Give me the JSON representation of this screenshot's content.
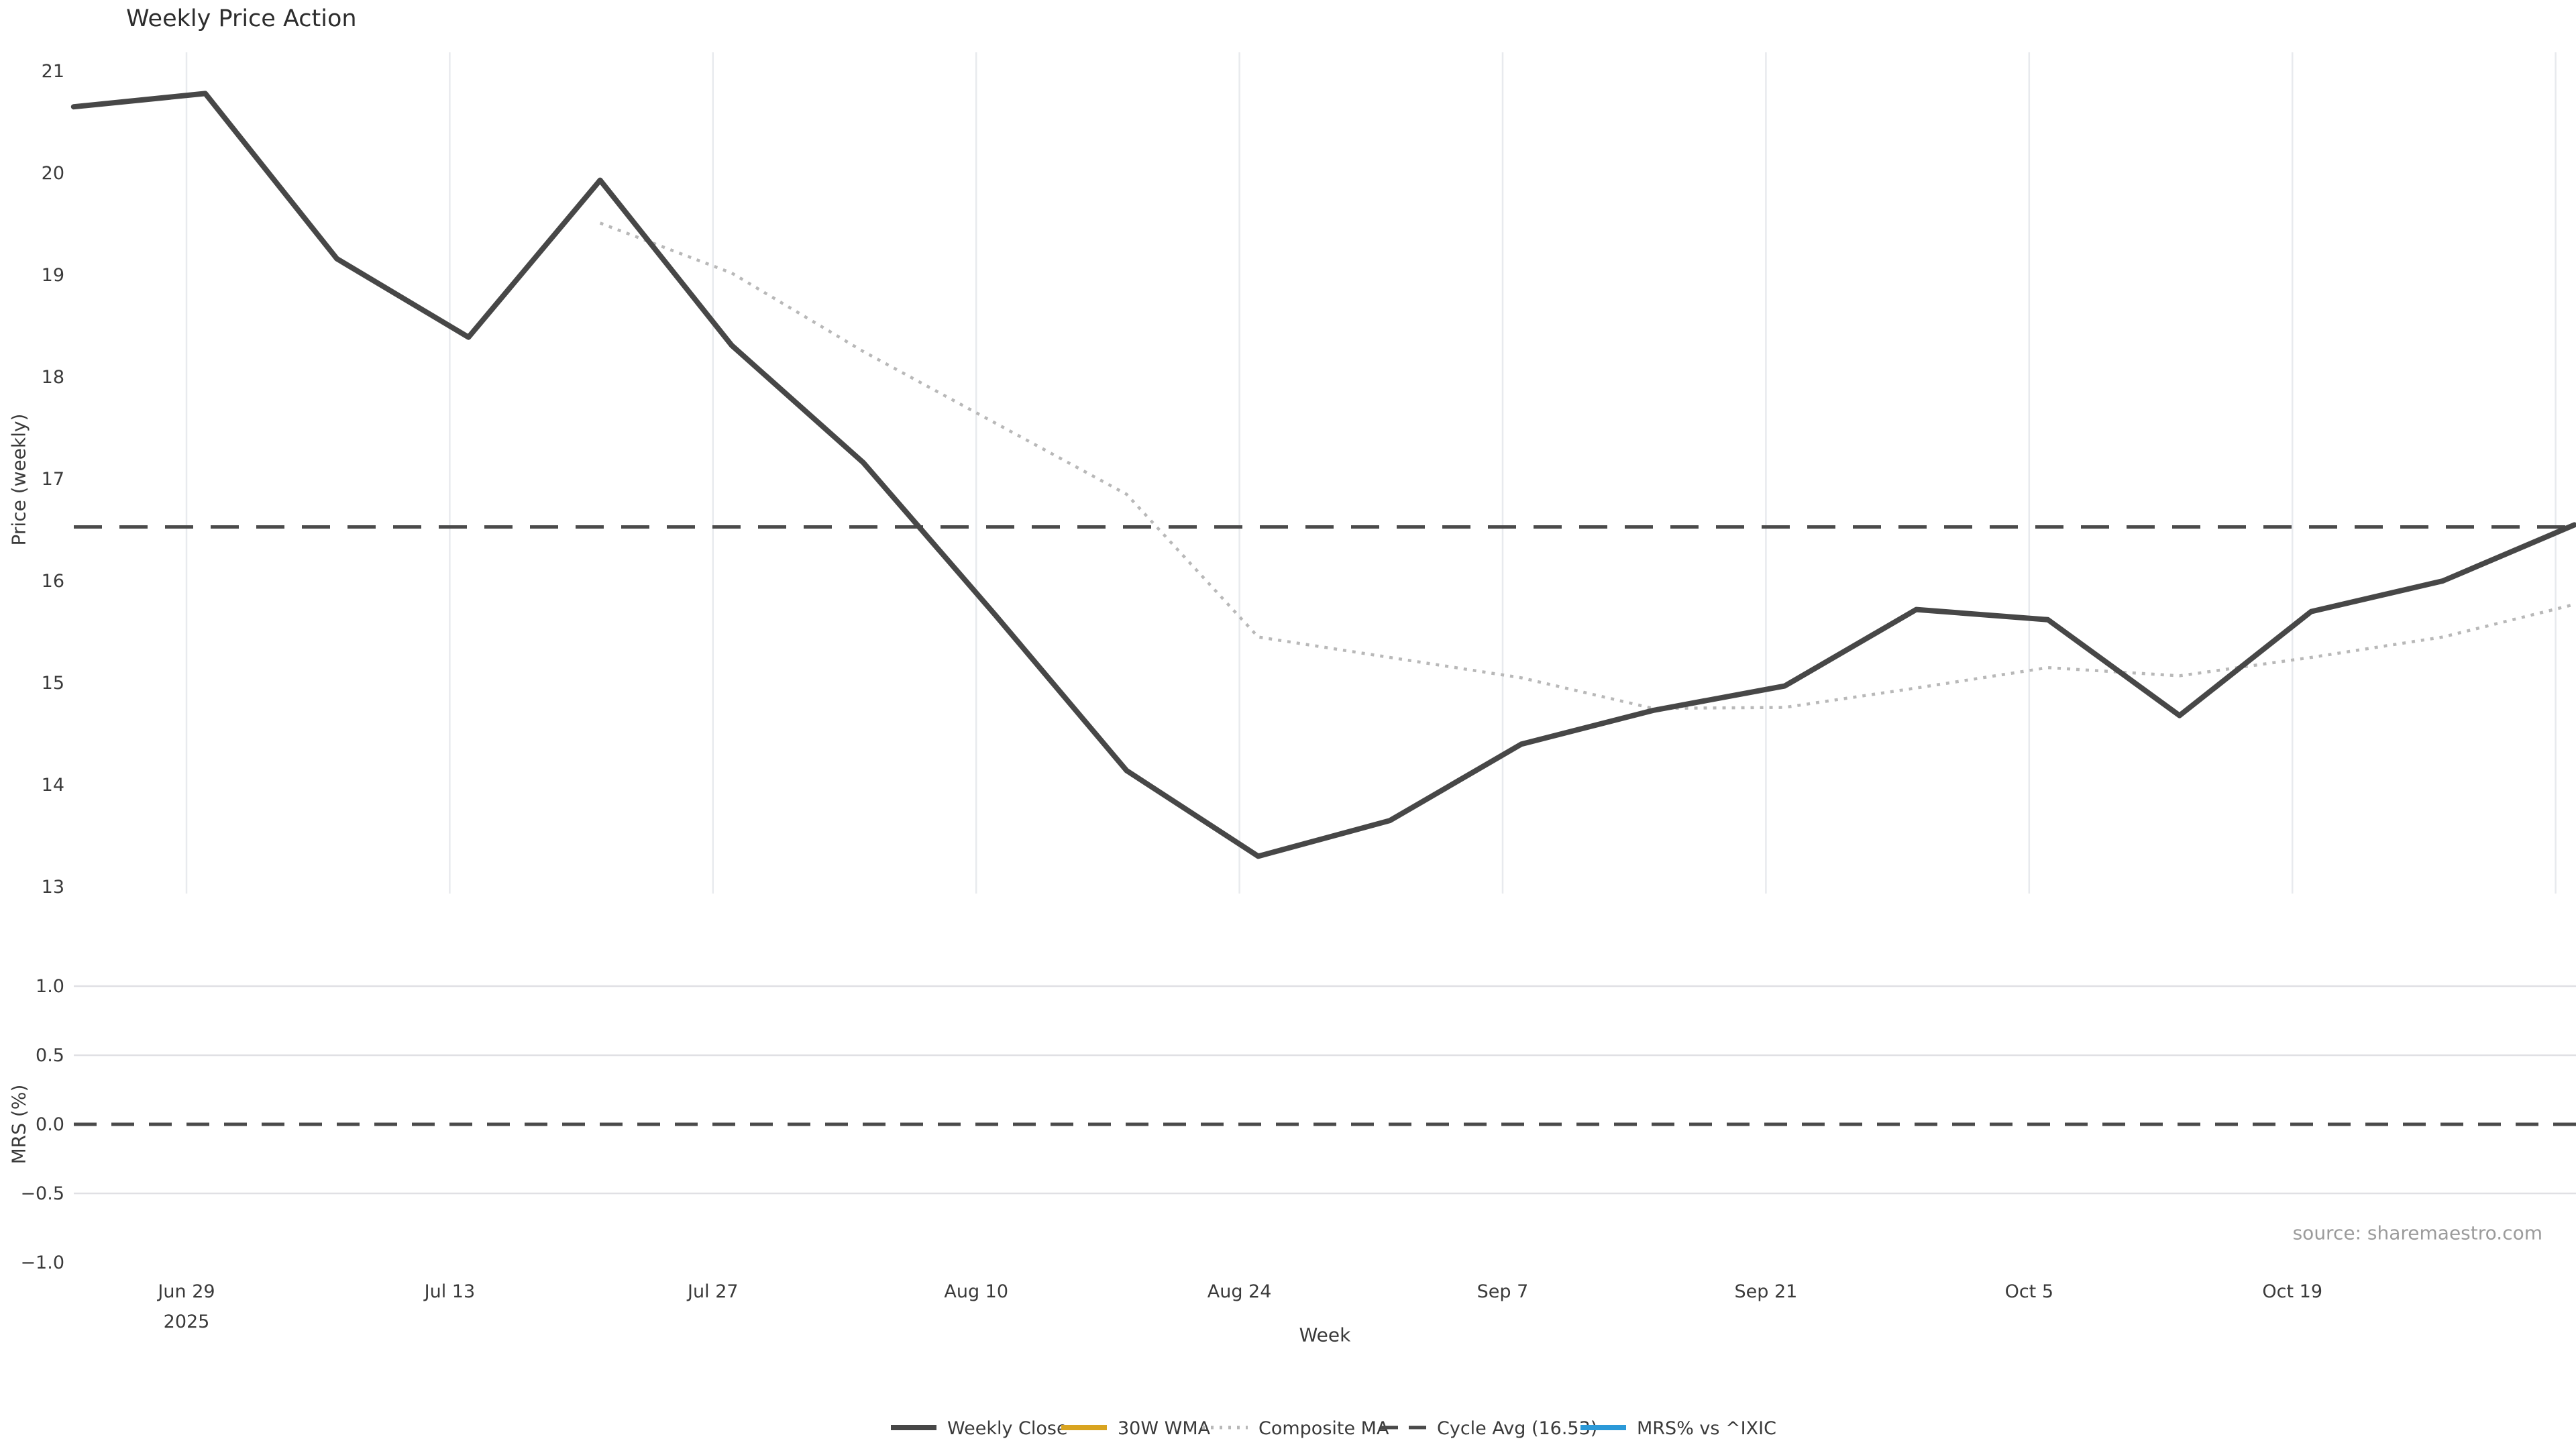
{
  "title": "Weekly Price Action",
  "source_note": "source: sharemaestro.com",
  "axes": {
    "x_title": "Week",
    "price_title": "Price (weekly)",
    "mrs_title": "MRS (%)"
  },
  "chart_data": {
    "type": "line",
    "title": "Weekly Price Action",
    "xlabel": "Week",
    "x": [
      "Jun 23",
      "Jun 30",
      "Jul 7",
      "Jul 14",
      "Jul 21",
      "Jul 28",
      "Aug 4",
      "Aug 11",
      "Aug 18",
      "Aug 25",
      "Sep 1",
      "Sep 8",
      "Sep 15",
      "Sep 22",
      "Sep 29",
      "Oct 6",
      "Oct 13",
      "Oct 20",
      "Oct 27",
      "Nov 3"
    ],
    "x_tick_labels": [
      "Jun 29",
      "Jul 13",
      "Jul 27",
      "Aug 10",
      "Aug 24",
      "Sep 7",
      "Sep 21",
      "Oct 5",
      "Oct 19"
    ],
    "x_first_tick_sublabel": "2025",
    "panels": [
      {
        "name": "price",
        "ylabel": "Price (weekly)",
        "ylim": [
          12.95,
          21.2
        ],
        "yticks": [
          13,
          14,
          15,
          16,
          17,
          18,
          19,
          20,
          21
        ],
        "grid": "vertical"
      },
      {
        "name": "mrs",
        "ylabel": "MRS (%)",
        "ylim": [
          -1.04,
          1.15
        ],
        "yticks": [
          1.0,
          0.5,
          0.0,
          -0.5,
          -1.0
        ],
        "ytick_labels": [
          "1.0",
          "0.5",
          "0.0",
          "−0.5",
          "−1.0"
        ],
        "grid": "horizontal"
      }
    ],
    "series": [
      {
        "name": "Weekly Close",
        "panel": "price",
        "style": "solid",
        "color": "#474747",
        "values": [
          20.65,
          20.78,
          19.16,
          18.39,
          19.93,
          18.31,
          17.16,
          15.67,
          14.14,
          13.3,
          13.65,
          14.4,
          14.73,
          14.97,
          15.72,
          15.62,
          14.68,
          15.7,
          16.0,
          16.55
        ]
      },
      {
        "name": "30W WMA",
        "panel": "price",
        "style": "solid",
        "color": "#d9a420",
        "values": []
      },
      {
        "name": "Composite MA",
        "panel": "price",
        "style": "dotted",
        "color": "#b8b8b8",
        "values": [
          null,
          null,
          null,
          null,
          19.51,
          19.02,
          18.25,
          17.55,
          16.85,
          15.45,
          15.25,
          15.05,
          14.75,
          14.76,
          14.95,
          15.15,
          15.07,
          15.25,
          15.45,
          15.77
        ]
      },
      {
        "name": "Cycle Avg (16.53)",
        "panel": "price",
        "style": "dashed",
        "color": "#4a4a4a",
        "constant": 16.53
      },
      {
        "name": "MRS% vs ^IXIC",
        "panel": "mrs",
        "style": "solid",
        "color": "#2b99d8",
        "values": [],
        "zero_line": 0.0
      }
    ],
    "legend_position": "bottom-center"
  }
}
